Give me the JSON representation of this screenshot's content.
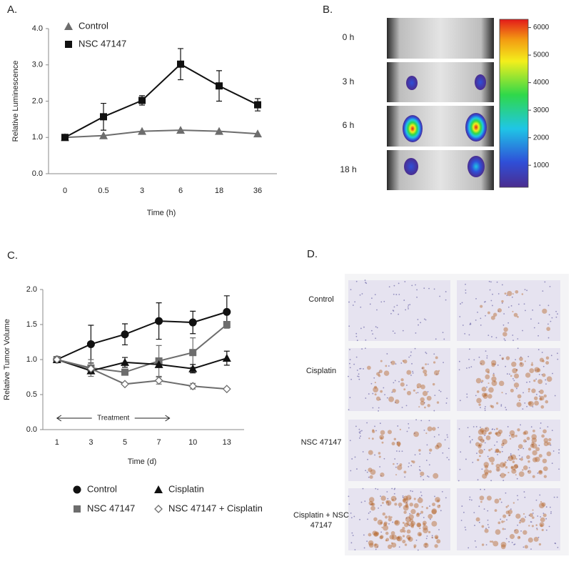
{
  "chart_data": [
    {
      "type": "line",
      "label": "A.",
      "xlabel": "Time (h)",
      "ylabel": "Relative Luminescence",
      "categories": [
        "0",
        "0.5",
        "3",
        "6",
        "18",
        "36"
      ],
      "series": [
        {
          "name": "Control",
          "color": "#6d6d6d",
          "marker": "triangle",
          "values": [
            1.0,
            1.05,
            1.17,
            1.2,
            1.17,
            1.1
          ]
        },
        {
          "name": "NSC 47147",
          "color": "#111111",
          "marker": "square",
          "values": [
            1.0,
            1.57,
            2.02,
            3.02,
            2.42,
            1.9
          ],
          "errors": [
            0.05,
            0.37,
            0.13,
            0.43,
            0.42,
            0.17
          ]
        }
      ],
      "ylim": [
        0,
        4
      ],
      "yticks": [
        {
          "value": 0,
          "label": "0.0"
        },
        {
          "value": 1,
          "label": "1.0"
        },
        {
          "value": 2,
          "label": "2.0"
        },
        {
          "value": 3,
          "label": "3.0"
        },
        {
          "value": 4,
          "label": "4.0"
        }
      ],
      "legend": "upper-left"
    },
    {
      "type": "line",
      "label": "C.",
      "xlabel": "Time (d)",
      "ylabel": "Relative Tumor Volume",
      "categories": [
        "1",
        "3",
        "5",
        "7",
        "10",
        "13"
      ],
      "series": [
        {
          "name": "Control",
          "color": "#111111",
          "marker": "circle",
          "values": [
            1.0,
            1.22,
            1.36,
            1.55,
            1.53,
            1.68
          ],
          "errors": [
            null,
            0.27,
            0.15,
            0.26,
            0.16,
            0.23
          ]
        },
        {
          "name": "NSC 47147",
          "color": "#6d6d6d",
          "marker": "square",
          "values": [
            1.0,
            0.88,
            0.82,
            0.98,
            1.1,
            1.5
          ],
          "errors": [
            null,
            0.12,
            null,
            0.22,
            0.21,
            null
          ]
        },
        {
          "name": "Cisplatin",
          "color": "#111111",
          "marker": "triangle",
          "values": [
            1.0,
            0.84,
            0.96,
            0.93,
            0.87,
            1.02
          ],
          "errors": [
            null,
            null,
            0.07,
            null,
            0.06,
            0.1
          ]
        },
        {
          "name": "NSC 47147 + Cisplatin",
          "color": "#6d6d6d",
          "marker": "open-diamond",
          "values": [
            1.0,
            0.87,
            0.65,
            0.7,
            0.62,
            0.58
          ],
          "errors": [
            null,
            null,
            null,
            0.05,
            0.04,
            null
          ]
        }
      ],
      "ylim": [
        0,
        2
      ],
      "yticks": [
        {
          "value": 0,
          "label": "0.0"
        },
        {
          "value": 0.5,
          "label": "0.5"
        },
        {
          "value": 1,
          "label": "1.0"
        },
        {
          "value": 1.5,
          "label": "1.5"
        },
        {
          "value": 2,
          "label": "2.0"
        }
      ],
      "annotation": "Treatment",
      "legend": "below"
    }
  ],
  "panel_b": {
    "label": "B.",
    "rows": [
      "0 h",
      "3 h",
      "6 h",
      "18 h"
    ],
    "colorbar": {
      "range": [
        200,
        6300
      ],
      "ticks": [
        1000,
        2000,
        3000,
        4000,
        5000,
        6000
      ]
    }
  },
  "panel_d": {
    "label": "D.",
    "rows": [
      "Control",
      "Cisplatin",
      "NSC 47147",
      "Cisplatin + NSC 47147"
    ]
  }
}
